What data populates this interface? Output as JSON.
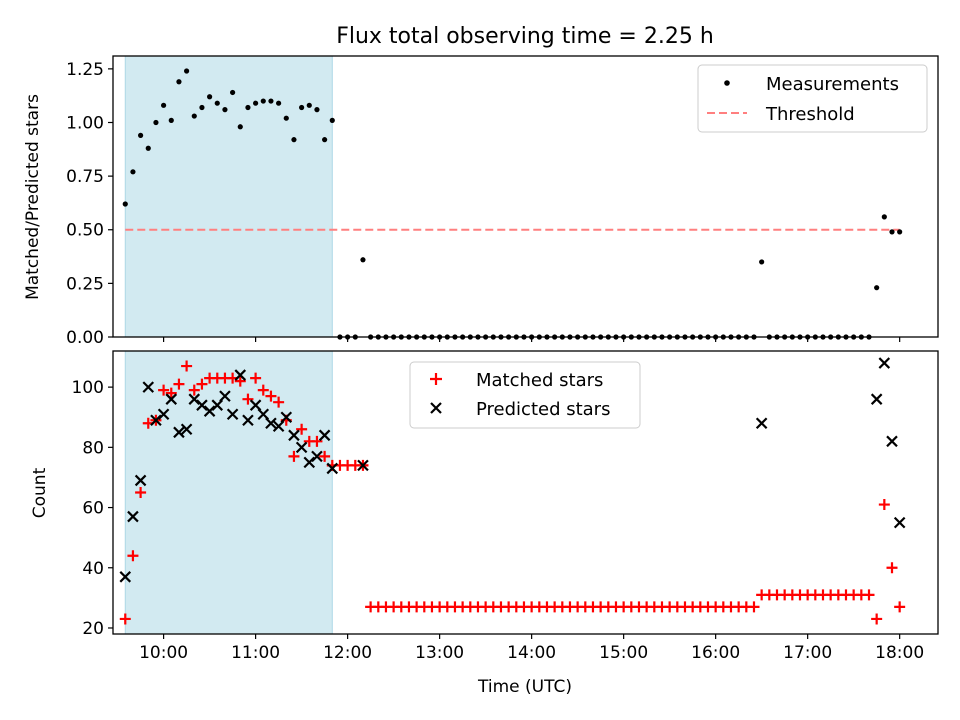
{
  "title": "Flux total observing time = 2.25 h",
  "colors": {
    "measurement": "#000000",
    "threshold": "#ff7f7f",
    "matched": "#ff0000",
    "predicted": "#000000",
    "span_fill": "#add8e6"
  },
  "chart_data": [
    {
      "type": "scatter",
      "title": "Flux total observing time = 2.25 h",
      "ylabel": "Matched/Predicted stars",
      "xlabel": "",
      "xlim": [
        "09:27",
        "18:25"
      ],
      "ylim": [
        0,
        1.31
      ],
      "yticks": [
        "0.00",
        "0.25",
        "0.50",
        "0.75",
        "1.00",
        "1.25"
      ],
      "xticks": [
        "10:00",
        "11:00",
        "12:00",
        "13:00",
        "14:00",
        "15:00",
        "16:00",
        "17:00",
        "18:00"
      ],
      "grid": false,
      "legend": "top-right",
      "highlight_span": [
        "09:35",
        "11:50"
      ],
      "threshold": 0.5,
      "series": [
        {
          "name": "Measurements",
          "marker": "dot",
          "x": [
            "09:35",
            "09:40",
            "09:45",
            "09:50",
            "09:55",
            "10:00",
            "10:05",
            "10:10",
            "10:15",
            "10:20",
            "10:25",
            "10:30",
            "10:35",
            "10:40",
            "10:45",
            "10:50",
            "10:55",
            "11:00",
            "11:05",
            "11:10",
            "11:15",
            "11:20",
            "11:25",
            "11:30",
            "11:35",
            "11:40",
            "11:45",
            "11:50",
            "11:55",
            "12:00",
            "12:05",
            "12:10",
            "12:15",
            "12:20",
            "12:25",
            "12:30",
            "12:35",
            "12:40",
            "12:45",
            "12:50",
            "12:55",
            "13:00",
            "13:05",
            "13:10",
            "13:15",
            "13:20",
            "13:25",
            "13:30",
            "13:35",
            "13:40",
            "13:45",
            "13:50",
            "13:55",
            "14:00",
            "14:05",
            "14:10",
            "14:15",
            "14:20",
            "14:25",
            "14:30",
            "14:35",
            "14:40",
            "14:45",
            "14:50",
            "14:55",
            "15:00",
            "15:05",
            "15:10",
            "15:15",
            "15:20",
            "15:25",
            "15:30",
            "15:35",
            "15:40",
            "15:45",
            "15:50",
            "15:55",
            "16:00",
            "16:05",
            "16:10",
            "16:15",
            "16:20",
            "16:25",
            "16:30",
            "16:35",
            "16:40",
            "16:45",
            "16:50",
            "16:55",
            "17:00",
            "17:05",
            "17:10",
            "17:15",
            "17:20",
            "17:25",
            "17:30",
            "17:35",
            "17:40",
            "17:45",
            "17:50",
            "17:55",
            "18:00"
          ],
          "y": [
            0.62,
            0.77,
            0.94,
            0.88,
            1.0,
            1.08,
            1.01,
            1.19,
            1.24,
            1.03,
            1.07,
            1.12,
            1.09,
            1.06,
            1.14,
            0.98,
            1.07,
            1.09,
            1.1,
            1.1,
            1.09,
            1.02,
            0.92,
            1.07,
            1.08,
            1.06,
            0.92,
            1.01,
            0,
            0,
            0,
            0.36,
            0,
            0,
            0,
            0,
            0,
            0,
            0,
            0,
            0,
            0,
            0,
            0,
            0,
            0,
            0,
            0,
            0,
            0,
            0,
            0,
            0,
            0,
            0,
            0,
            0,
            0,
            0,
            0,
            0,
            0,
            0,
            0,
            0,
            0,
            0,
            0,
            0,
            0,
            0,
            0,
            0,
            0,
            0,
            0,
            0,
            0,
            0,
            0,
            0,
            0,
            0,
            0.35,
            0,
            0,
            0,
            0,
            0,
            0,
            0,
            0,
            0,
            0,
            0,
            0,
            0,
            0,
            0.23,
            0.56,
            0.49,
            0.49
          ]
        },
        {
          "name": "Threshold",
          "marker": "dashed-line",
          "x": [
            "09:35",
            "18:00"
          ],
          "y": [
            0.5,
            0.5
          ]
        }
      ]
    },
    {
      "type": "scatter",
      "title": "",
      "xlabel": "Time (UTC)",
      "ylabel": "Count",
      "xlim": [
        "09:27",
        "18:25"
      ],
      "ylim": [
        18,
        112
      ],
      "yticks": [
        "20",
        "40",
        "60",
        "80",
        "100"
      ],
      "xticks": [
        "10:00",
        "11:00",
        "12:00",
        "13:00",
        "14:00",
        "15:00",
        "16:00",
        "17:00",
        "18:00"
      ],
      "grid": false,
      "legend": "top-center",
      "highlight_span": [
        "09:35",
        "11:50"
      ],
      "series": [
        {
          "name": "Matched stars",
          "marker": "plus",
          "x": [
            "09:35",
            "09:40",
            "09:45",
            "09:50",
            "09:55",
            "10:00",
            "10:05",
            "10:10",
            "10:15",
            "10:20",
            "10:25",
            "10:30",
            "10:35",
            "10:40",
            "10:45",
            "10:50",
            "10:55",
            "11:00",
            "11:05",
            "11:10",
            "11:15",
            "11:20",
            "11:25",
            "11:30",
            "11:35",
            "11:40",
            "11:45",
            "11:50",
            "11:55",
            "12:00",
            "12:05",
            "12:10",
            "12:15",
            "12:20",
            "12:25",
            "12:30",
            "12:35",
            "12:40",
            "12:45",
            "12:50",
            "12:55",
            "13:00",
            "13:05",
            "13:10",
            "13:15",
            "13:20",
            "13:25",
            "13:30",
            "13:35",
            "13:40",
            "13:45",
            "13:50",
            "13:55",
            "14:00",
            "14:05",
            "14:10",
            "14:15",
            "14:20",
            "14:25",
            "14:30",
            "14:35",
            "14:40",
            "14:45",
            "14:50",
            "14:55",
            "15:00",
            "15:05",
            "15:10",
            "15:15",
            "15:20",
            "15:25",
            "15:30",
            "15:35",
            "15:40",
            "15:45",
            "15:50",
            "15:55",
            "16:00",
            "16:05",
            "16:10",
            "16:15",
            "16:20",
            "16:25",
            "16:30",
            "16:35",
            "16:40",
            "16:45",
            "16:50",
            "16:55",
            "17:00",
            "17:05",
            "17:10",
            "17:15",
            "17:20",
            "17:25",
            "17:30",
            "17:35",
            "17:40",
            "17:45",
            "17:50",
            "17:55",
            "18:00"
          ],
          "y": [
            23,
            44,
            65,
            88,
            89,
            99,
            98,
            101,
            107,
            99,
            101,
            103,
            103,
            103,
            103,
            102,
            96,
            103,
            99,
            97,
            95,
            89,
            77,
            86,
            82,
            82,
            77,
            74,
            74,
            74,
            74,
            74,
            27,
            27,
            27,
            27,
            27,
            27,
            27,
            27,
            27,
            27,
            27,
            27,
            27,
            27,
            27,
            27,
            27,
            27,
            27,
            27,
            27,
            27,
            27,
            27,
            27,
            27,
            27,
            27,
            27,
            27,
            27,
            27,
            27,
            27,
            27,
            27,
            27,
            27,
            27,
            27,
            27,
            27,
            27,
            27,
            27,
            27,
            27,
            27,
            27,
            27,
            27,
            31,
            31,
            31,
            31,
            31,
            31,
            31,
            31,
            31,
            31,
            31,
            31,
            31,
            31,
            31,
            23,
            61,
            40,
            27
          ]
        },
        {
          "name": "Predicted stars",
          "marker": "x",
          "x": [
            "09:35",
            "09:40",
            "09:45",
            "09:50",
            "09:55",
            "10:00",
            "10:05",
            "10:10",
            "10:15",
            "10:20",
            "10:25",
            "10:30",
            "10:35",
            "10:40",
            "10:45",
            "10:50",
            "10:55",
            "11:00",
            "11:05",
            "11:10",
            "11:15",
            "11:20",
            "11:25",
            "11:30",
            "11:35",
            "11:40",
            "11:45",
            "11:50",
            "12:10",
            "16:30",
            "17:45",
            "17:50",
            "17:55",
            "18:00"
          ],
          "y": [
            37,
            57,
            69,
            100,
            89,
            91,
            96,
            85,
            86,
            96,
            94,
            92,
            94,
            97,
            91,
            104,
            89,
            94,
            91,
            88,
            87,
            90,
            84,
            80,
            75,
            77,
            84,
            73,
            74,
            88,
            96,
            108,
            82,
            55
          ]
        }
      ]
    }
  ]
}
